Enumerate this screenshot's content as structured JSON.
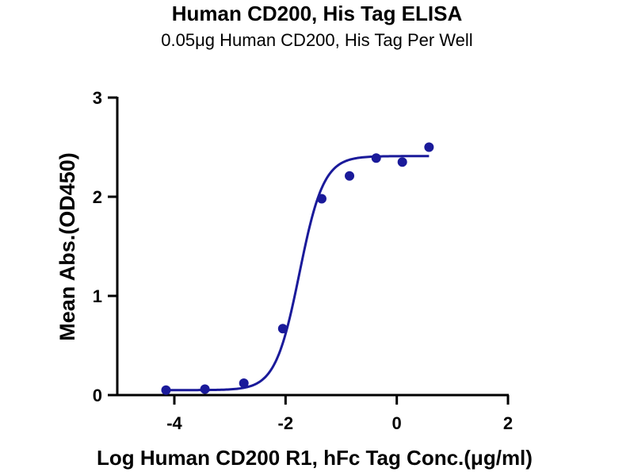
{
  "chart_data": {
    "type": "scatter",
    "title": "Human CD200, His Tag ELISA",
    "subtitle": "0.05μg Human CD200, His Tag Per Well",
    "xlabel": "Log Human CD200 R1, hFc Tag Conc.(μg/ml)",
    "ylabel": "Mean Abs.(OD450)",
    "xlim": [
      -5,
      2
    ],
    "ylim": [
      0,
      3
    ],
    "x_ticks": [
      -4,
      -2,
      0,
      2
    ],
    "x_tick_labels": [
      "-4",
      "-2",
      "0",
      "2"
    ],
    "y_ticks": [
      0,
      1,
      2,
      3
    ],
    "y_tick_labels": [
      "0",
      "1",
      "2",
      "3"
    ],
    "grid": false,
    "colors": {
      "series": "#1a1a9a"
    },
    "series": [
      {
        "points": [
          {
            "x": -4.15,
            "y": 0.05
          },
          {
            "x": -3.45,
            "y": 0.06
          },
          {
            "x": -2.75,
            "y": 0.12
          },
          {
            "x": -2.05,
            "y": 0.67
          },
          {
            "x": -1.35,
            "y": 1.98
          },
          {
            "x": -0.85,
            "y": 2.21
          },
          {
            "x": -0.37,
            "y": 2.39
          },
          {
            "x": 0.1,
            "y": 2.35
          },
          {
            "x": 0.58,
            "y": 2.5
          }
        ],
        "fit": {
          "model": "4PL",
          "bottom": 0.05,
          "top": 2.41,
          "logEC50": -1.75,
          "hill": 2.0,
          "x_range": [
            -4.15,
            0.58
          ]
        }
      }
    ]
  }
}
